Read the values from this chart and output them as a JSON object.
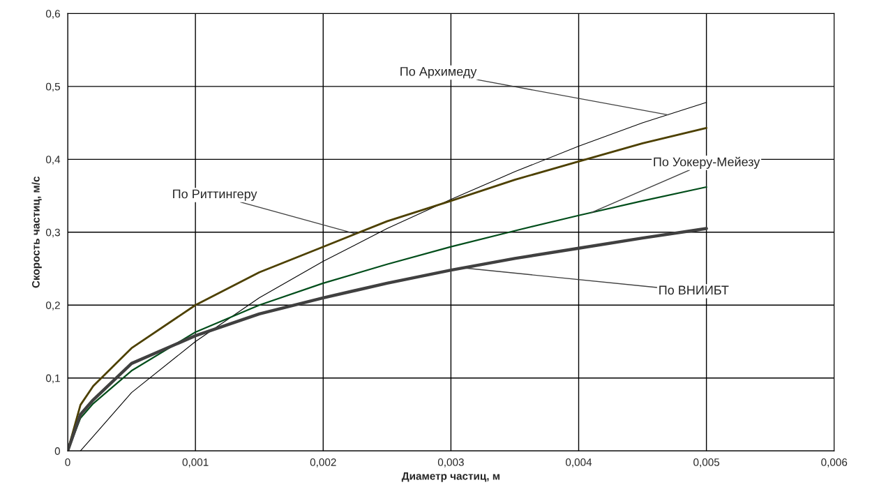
{
  "chart_data": {
    "type": "line",
    "xlabel": "Диаметр частиц, м",
    "ylabel": "Скорость частиц, м/с",
    "xlim": [
      0,
      0.006
    ],
    "ylim": [
      0,
      0.6
    ],
    "xticks": [
      0,
      {
        "value": 0.001,
        "label": "0,001"
      },
      {
        "value": 0.002,
        "label": "0,002"
      },
      {
        "value": 0.003,
        "label": "0,003"
      },
      {
        "value": 0.004,
        "label": "0,004"
      },
      {
        "value": 0.005,
        "label": "0,005"
      },
      {
        "value": 0.006,
        "label": "0,006"
      }
    ],
    "yticks": [
      0,
      {
        "value": 0.1,
        "label": "0,1"
      },
      {
        "value": 0.2,
        "label": "0,2"
      },
      {
        "value": 0.3,
        "label": "0,3"
      },
      {
        "value": 0.4,
        "label": "0,4"
      },
      {
        "value": 0.5,
        "label": "0,5"
      },
      {
        "value": 0.6,
        "label": "0,6"
      }
    ],
    "grid": true,
    "marker": "none",
    "x": [
      0,
      0.0001,
      0.0002,
      0.0005,
      0.001,
      0.0015,
      0.002,
      0.0025,
      0.003,
      0.0035,
      0.004,
      0.0045,
      0.005
    ],
    "series": [
      {
        "color": "#000000",
        "values": [
          null,
          0,
          0.02,
          0.08,
          0.15,
          0.21,
          0.26,
          0.305,
          0.345,
          0.383,
          0.418,
          0.45,
          0.478
        ]
      },
      {
        "color": "#4d4000",
        "values": [
          0,
          0.063,
          0.089,
          0.141,
          0.2,
          0.245,
          0.28,
          0.315,
          0.343,
          0.372,
          0.397,
          0.422,
          0.443
        ]
      },
      {
        "color": "#004d1a",
        "values": [
          0,
          0.045,
          0.065,
          0.11,
          0.163,
          0.2,
          0.23,
          0.256,
          0.28,
          0.302,
          0.323,
          0.343,
          0.362
        ]
      },
      {
        "color": "#404040",
        "values": [
          0,
          0.05,
          0.07,
          0.12,
          0.158,
          0.188,
          0.21,
          0.23,
          0.248,
          0.264,
          0.278,
          0.292,
          0.305
        ]
      }
    ],
    "annotations": [
      {
        "text": "По Архимеду",
        "x": 0.0047,
        "y": 0.461
      },
      {
        "text": "По Риттингеру",
        "x": 0.00225,
        "y": 0.298
      },
      {
        "text": "По Уокеру-Мейезу",
        "x": 0.0041,
        "y": 0.327
      },
      {
        "text": "По ВНИИБТ",
        "x": 0.0031,
        "y": 0.251
      }
    ]
  }
}
